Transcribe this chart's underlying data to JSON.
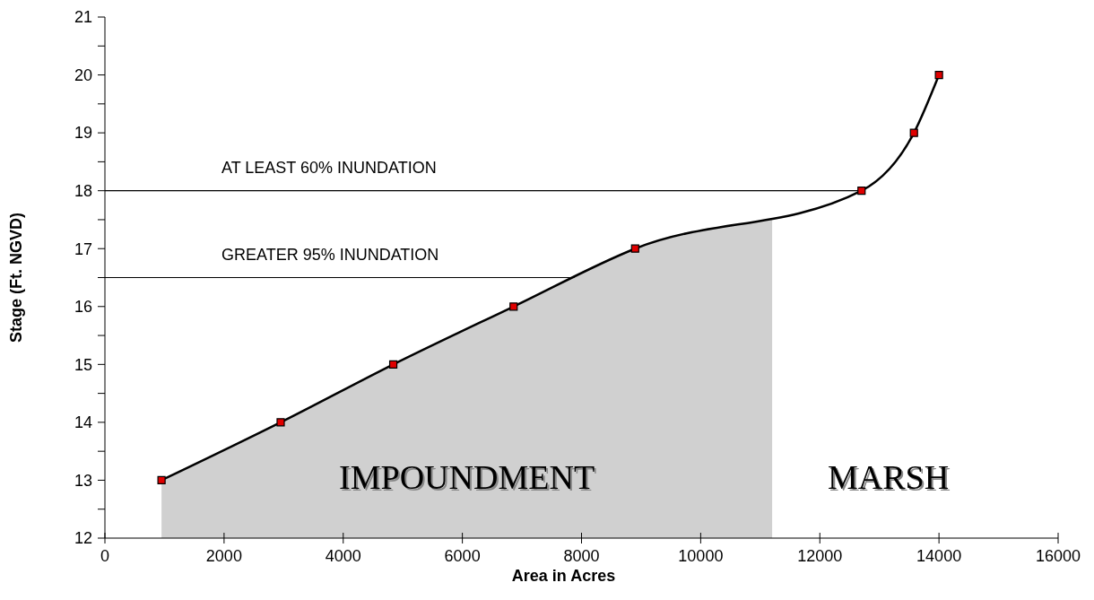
{
  "chart_data": {
    "type": "line",
    "xlabel": "Area in Acres",
    "ylabel": "Stage (Ft. NGVD)",
    "xlim": [
      0,
      16000
    ],
    "xticks": [
      0,
      2000,
      4000,
      6000,
      8000,
      10000,
      12000,
      14000,
      16000
    ],
    "ylim": [
      12,
      21
    ],
    "yticks": [
      12,
      {
        "value": 12.5,
        "label": null
      },
      13,
      {
        "value": 13.5,
        "label": null
      },
      14,
      {
        "value": 14.5,
        "label": null
      },
      15,
      {
        "value": 15.5,
        "label": null
      },
      16,
      {
        "value": 16.5,
        "label": null
      },
      17,
      {
        "value": 17.5,
        "label": null
      },
      18,
      {
        "value": 18.5,
        "label": null
      },
      19,
      {
        "value": 19.5,
        "label": null
      },
      20,
      {
        "value": 20.5,
        "label": null
      },
      21
    ],
    "series": [
      {
        "type": "area",
        "color": "#d0d0d0",
        "x": [
          950,
          2950,
          4840,
          6860,
          8900,
          11200
        ],
        "values": [
          13,
          14,
          15,
          16,
          17,
          17.5
        ]
      },
      {
        "type": "line",
        "color": "#000000",
        "marker": "square",
        "x": [
          950,
          2950,
          4840,
          6860,
          8900,
          12700,
          13580,
          14000
        ],
        "values": [
          13,
          14,
          15,
          16,
          17,
          18,
          19,
          20
        ]
      }
    ],
    "ref_lines": [
      {
        "axis": "y",
        "value": 18,
        "label": "AT LEAST 60% INUNDATION",
        "color": "#000000"
      },
      {
        "axis": "y",
        "value": 16.5,
        "label": "GREATER 95% INUNDATION",
        "color": "#000000"
      }
    ],
    "annotations": [
      "IMPOUNDMENT",
      "MARSH"
    ],
    "grid": false
  }
}
